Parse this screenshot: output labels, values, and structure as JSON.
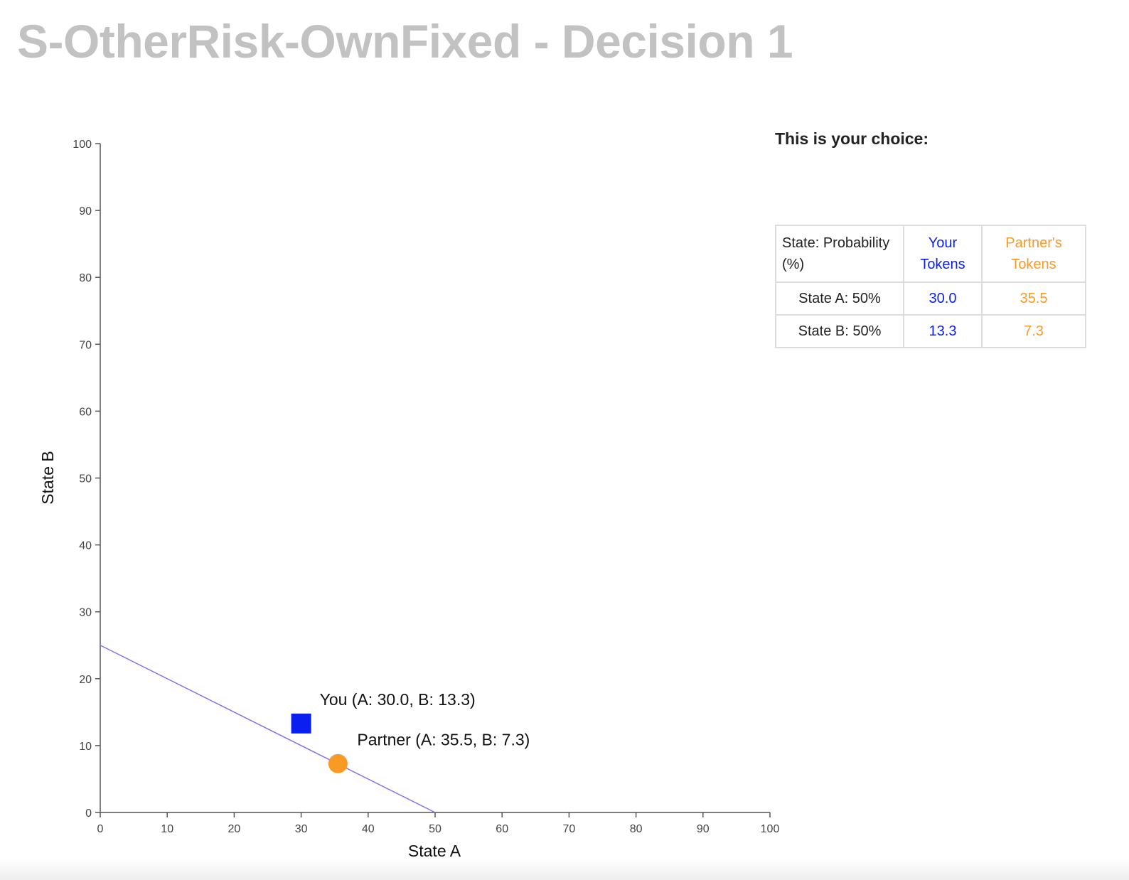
{
  "page": {
    "title": "S-OtherRisk-OwnFixed - Decision 1"
  },
  "choice_panel": {
    "heading": "This is your choice:",
    "table": {
      "headers": {
        "state": "State: Probability (%)",
        "yours": "Your Tokens",
        "partner": "Partner's Tokens"
      },
      "rows": [
        {
          "state": "State A: 50%",
          "yours": "30.0",
          "partner": "35.5"
        },
        {
          "state": "State B: 50%",
          "yours": "13.3",
          "partner": "7.3"
        }
      ]
    }
  },
  "colors": {
    "you": "#0a1ff0",
    "partner": "#f99a24",
    "budget_line": "#8a6fe0",
    "axis": "#555555",
    "title": "#c2c2c2"
  },
  "chart_data": {
    "type": "scatter",
    "xlabel": "State A",
    "ylabel": "State B",
    "xlim": [
      0,
      100
    ],
    "ylim": [
      0,
      100
    ],
    "xticks": [
      0,
      10,
      20,
      30,
      40,
      50,
      60,
      70,
      80,
      90,
      100
    ],
    "yticks": [
      0,
      10,
      20,
      30,
      40,
      50,
      60,
      70,
      80,
      90,
      100
    ],
    "grid": false,
    "budget_line": {
      "x": [
        0,
        50
      ],
      "y": [
        25,
        0
      ]
    },
    "points": [
      {
        "label": "You (A: 30.0, B: 13.3)",
        "x": 30.0,
        "y": 13.3,
        "marker": "square",
        "color": "#0a1ff0"
      },
      {
        "label": "Partner (A: 35.5, B: 7.3)",
        "x": 35.5,
        "y": 7.3,
        "marker": "circle",
        "color": "#f99a24"
      }
    ]
  }
}
